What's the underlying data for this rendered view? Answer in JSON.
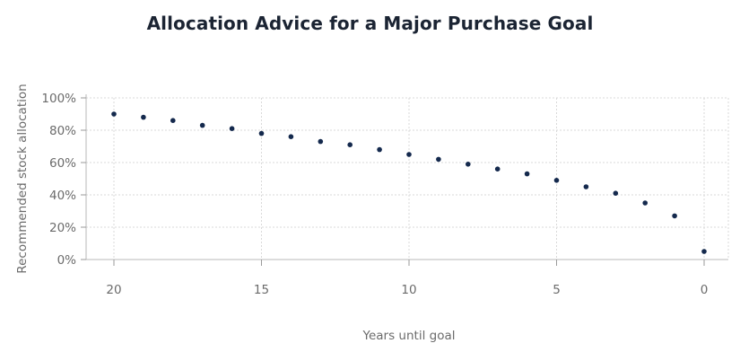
{
  "chart_data": {
    "type": "scatter",
    "title": "Allocation Advice for a Major Purchase Goal",
    "xlabel": "Years until goal",
    "ylabel": "Recommended stock allocation",
    "x_reversed": true,
    "xlim": [
      20,
      0
    ],
    "ylim": [
      0,
      100
    ],
    "x_ticks": [
      20,
      15,
      10,
      5,
      0
    ],
    "x_tick_labels": [
      "20",
      "15",
      "10",
      "5",
      "0"
    ],
    "y_ticks": [
      0,
      20,
      40,
      60,
      80,
      100
    ],
    "y_tick_labels": [
      "0%",
      "20%",
      "40%",
      "60%",
      "80%",
      "100%"
    ],
    "grid": true,
    "marker_color": "#14294d",
    "series": [
      {
        "x": [
          20,
          19,
          18,
          17,
          16,
          15,
          14,
          13,
          12,
          11,
          10,
          9,
          8,
          7,
          6,
          5,
          4,
          3,
          2,
          1,
          0
        ],
        "values": [
          90,
          88,
          86,
          83,
          81,
          78,
          76,
          73,
          71,
          68,
          65,
          62,
          59,
          56,
          53,
          49,
          45,
          41,
          35,
          27,
          5
        ]
      }
    ]
  }
}
